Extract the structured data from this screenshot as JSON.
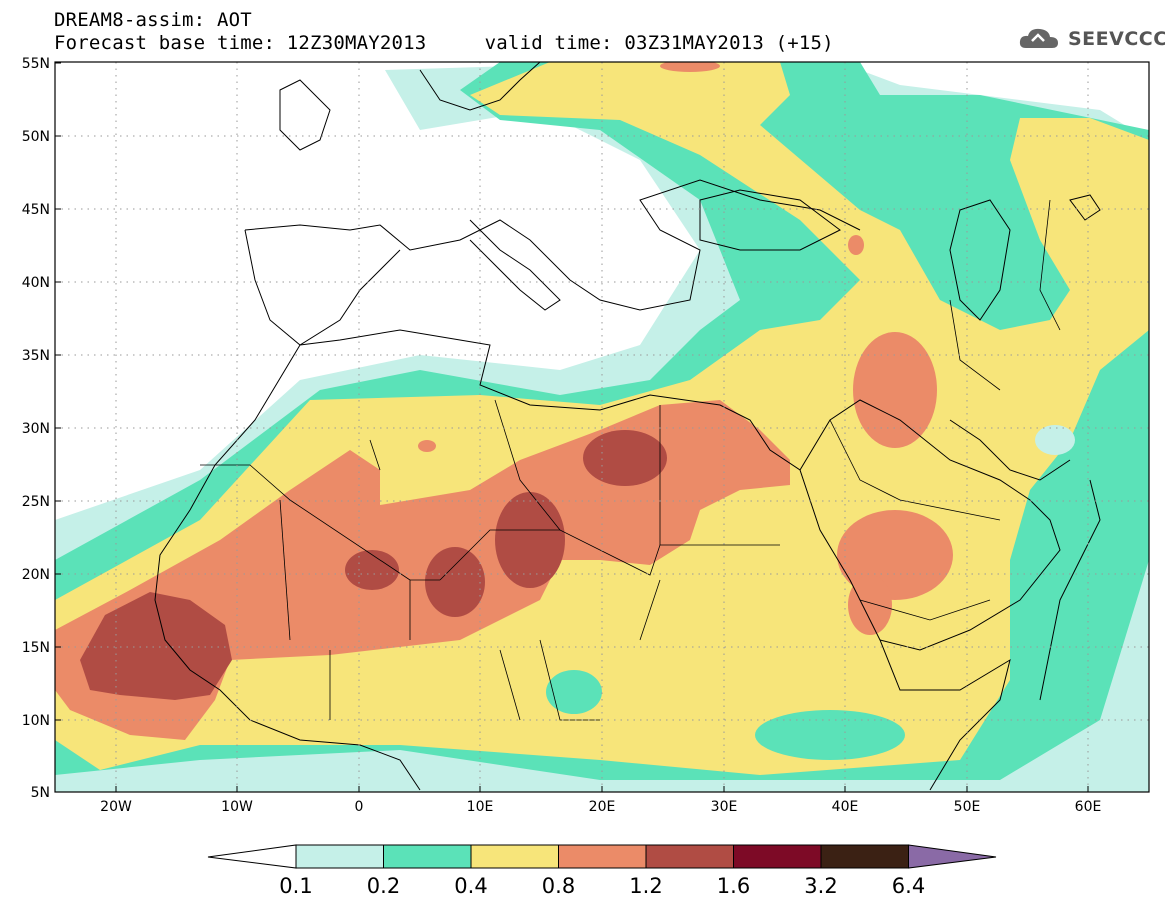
{
  "header": {
    "title": "DREAM8-assim: AOT",
    "base_label": "Forecast base time: 12Z30MAY2013",
    "valid_label": "valid time: 03Z31MAY2013 (+15)"
  },
  "logo": {
    "text": "SEEVCCC",
    "icon": "cloud-icon"
  },
  "axes": {
    "lat_labels": [
      "55N",
      "50N",
      "45N",
      "40N",
      "35N",
      "30N",
      "25N",
      "20N",
      "15N",
      "10N",
      "5N"
    ],
    "lon_labels": [
      "20W",
      "10W",
      "0",
      "10E",
      "20E",
      "30E",
      "40E",
      "50E",
      "60E"
    ],
    "lat_range": [
      5,
      55
    ],
    "lon_range": [
      -25,
      65
    ],
    "grid": "dotted"
  },
  "colorbar": {
    "levels": [
      "0.1",
      "0.2",
      "0.4",
      "0.8",
      "1.2",
      "1.6",
      "3.2",
      "6.4"
    ],
    "colors": [
      "#ffffff",
      "#c5f0e8",
      "#5be2b8",
      "#f7e57a",
      "#eb8b68",
      "#b04c44",
      "#7d0a26",
      "#3b2114",
      "#8a6aa6"
    ]
  },
  "colors": {
    "c01": "#c5f0e8",
    "c02": "#5be2b8",
    "c04": "#f7e57a",
    "c08": "#eb8b68",
    "c12": "#b04c44"
  }
}
